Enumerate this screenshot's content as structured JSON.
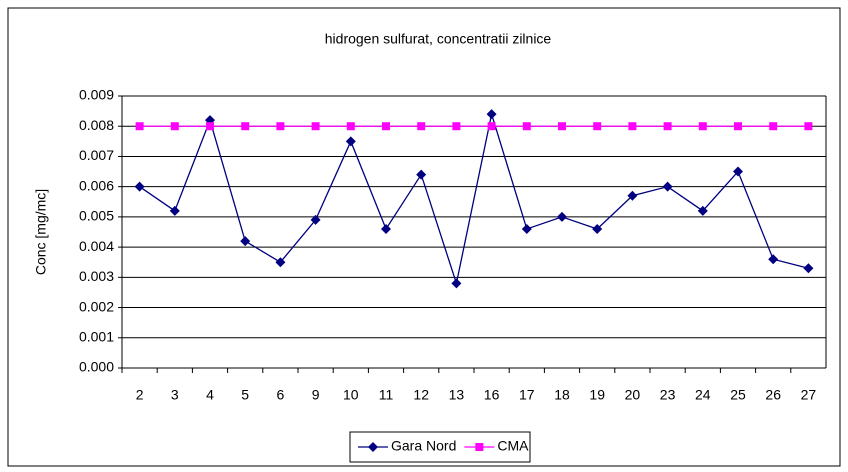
{
  "chart_data": {
    "type": "line",
    "title": "hidrogen sulfurat, concentratii zilnice",
    "y_label": "Conc [mg/mc]",
    "categories": [
      "2",
      "3",
      "4",
      "5",
      "6",
      "9",
      "10",
      "11",
      "12",
      "13",
      "16",
      "17",
      "18",
      "19",
      "20",
      "23",
      "24",
      "25",
      "26",
      "27"
    ],
    "series": [
      {
        "name": "Gara Nord",
        "color": "#000080",
        "marker": "diamond",
        "values": [
          0.006,
          0.0052,
          0.0082,
          0.0042,
          0.0035,
          0.0049,
          0.0075,
          0.0046,
          0.0064,
          0.0028,
          0.0084,
          0.0046,
          0.005,
          0.0046,
          0.0057,
          0.006,
          0.0052,
          0.0065,
          0.0036,
          0.0033
        ]
      },
      {
        "name": "CMA",
        "color": "#ff00ff",
        "marker": "square",
        "values": [
          0.008,
          0.008,
          0.008,
          0.008,
          0.008,
          0.008,
          0.008,
          0.008,
          0.008,
          0.008,
          0.008,
          0.008,
          0.008,
          0.008,
          0.008,
          0.008,
          0.008,
          0.008,
          0.008,
          0.008
        ]
      }
    ],
    "ylim": [
      0,
      0.009
    ],
    "yticks": [
      {
        "value": 0,
        "label": "0.000"
      },
      0.001,
      0.002,
      0.003,
      0.004,
      0.005,
      0.006,
      0.007,
      0.008,
      0.009
    ],
    "grid": true,
    "legend": "bottom"
  }
}
